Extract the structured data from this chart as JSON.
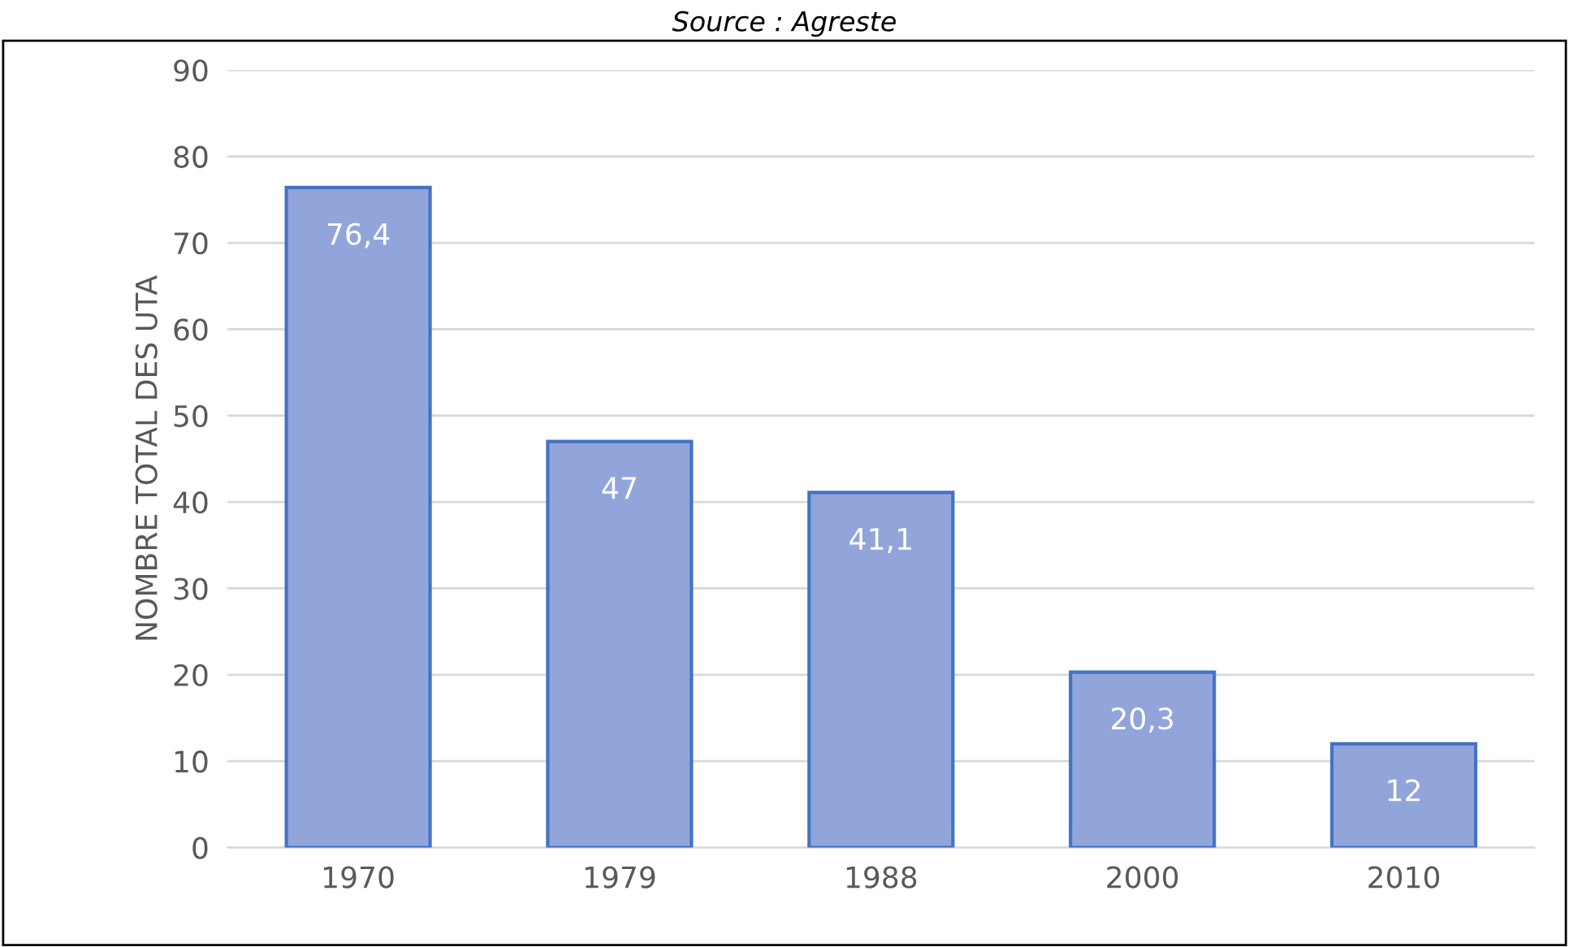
{
  "chart_data": {
    "type": "bar",
    "ylabel": "NOMBRE TOTAL DES UTA",
    "annotations": [
      "Source : Agreste"
    ],
    "categories": [
      "1970",
      "1979",
      "1988",
      "2000",
      "2010"
    ],
    "values": [
      76.4,
      47,
      41.1,
      20.3,
      12
    ],
    "value_labels": [
      "76,4",
      "47",
      "41,1",
      "20,3",
      "12"
    ],
    "color": "#91a5da",
    "ylim": [
      0,
      90
    ],
    "yticks": [
      0,
      10,
      20,
      30,
      40,
      50,
      60,
      70,
      80,
      90
    ],
    "grid": "y",
    "legend": false
  }
}
